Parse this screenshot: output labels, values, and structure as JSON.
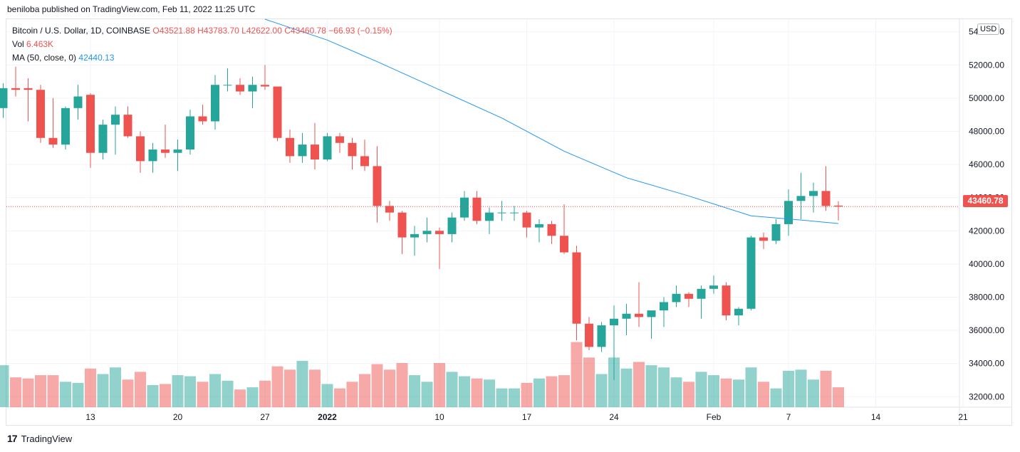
{
  "header": {
    "published": "beniloba published on TradingView.com, Feb 11, 2022 11:25 UTC"
  },
  "legend": {
    "symbol": "Bitcoin / U.S. Dollar, 1D, COINBASE",
    "ohlc": "O43521.88 H43783.70 L42622.00 C43460.78 −66.93 (−0.15%)",
    "vol_label": "Vol",
    "vol_value": "6.463K",
    "ma_label": "MA (50, close, 0)",
    "ma_value": "42440.13"
  },
  "currency_badge": "USD",
  "last_price_label": "43460.78",
  "footer": {
    "brand": "TradingView",
    "logo": "tradingview-logo-icon"
  },
  "colors": {
    "up": "#26a69a",
    "down": "#ef5350",
    "ma": "#2196f3"
  },
  "chart_data": {
    "type": "candlestick",
    "ylim": [
      31000,
      54500
    ],
    "last_price": 43460.78,
    "y_ticks": [
      "32000.00",
      "34000.00",
      "36000.00",
      "38000.00",
      "40000.00",
      "42000.00",
      "44000.00",
      "46000.00",
      "48000.00",
      "50000.00",
      "52000.00",
      "54000.00"
    ],
    "x_ticks": [
      {
        "label": "13",
        "date": "2021-12-13"
      },
      {
        "label": "20",
        "date": "2021-12-20"
      },
      {
        "label": "27",
        "date": "2021-12-27"
      },
      {
        "label": "2022",
        "date": "2022-01-01"
      },
      {
        "label": "10",
        "date": "2022-01-10"
      },
      {
        "label": "17",
        "date": "2022-01-17"
      },
      {
        "label": "24",
        "date": "2022-01-24"
      },
      {
        "label": "Feb",
        "date": "2022-02-01"
      },
      {
        "label": "7",
        "date": "2022-02-07"
      },
      {
        "label": "14",
        "date": "2022-02-14"
      },
      {
        "label": "21",
        "date": "2022-02-21"
      }
    ],
    "candles": [
      {
        "date": "2021-12-06",
        "o": 49400,
        "h": 50900,
        "l": 48800,
        "c": 50600,
        "v": 3.8
      },
      {
        "date": "2021-12-07",
        "o": 50600,
        "h": 51900,
        "l": 50100,
        "c": 50500,
        "v": 2.7
      },
      {
        "date": "2021-12-08",
        "o": 50600,
        "h": 51200,
        "l": 48600,
        "c": 50500,
        "v": 2.6
      },
      {
        "date": "2021-12-09",
        "o": 50500,
        "h": 50800,
        "l": 47300,
        "c": 47600,
        "v": 2.9
      },
      {
        "date": "2021-12-10",
        "o": 47600,
        "h": 50000,
        "l": 47000,
        "c": 47200,
        "v": 2.9
      },
      {
        "date": "2021-12-11",
        "o": 47200,
        "h": 49500,
        "l": 46900,
        "c": 49400,
        "v": 2.3
      },
      {
        "date": "2021-12-12",
        "o": 49400,
        "h": 50800,
        "l": 48700,
        "c": 50100,
        "v": 2.2
      },
      {
        "date": "2021-12-13",
        "o": 50200,
        "h": 50300,
        "l": 45800,
        "c": 46700,
        "v": 3.5
      },
      {
        "date": "2021-12-14",
        "o": 46700,
        "h": 48700,
        "l": 46300,
        "c": 48400,
        "v": 3.0
      },
      {
        "date": "2021-12-15",
        "o": 48400,
        "h": 49500,
        "l": 46600,
        "c": 49000,
        "v": 3.6
      },
      {
        "date": "2021-12-16",
        "o": 49000,
        "h": 49500,
        "l": 47600,
        "c": 47700,
        "v": 2.5
      },
      {
        "date": "2021-12-17",
        "o": 47700,
        "h": 48000,
        "l": 45500,
        "c": 46200,
        "v": 3.2
      },
      {
        "date": "2021-12-18",
        "o": 46200,
        "h": 47300,
        "l": 45500,
        "c": 46900,
        "v": 2.0
      },
      {
        "date": "2021-12-19",
        "o": 46900,
        "h": 48400,
        "l": 46400,
        "c": 46700,
        "v": 2.1
      },
      {
        "date": "2021-12-20",
        "o": 46700,
        "h": 47500,
        "l": 45600,
        "c": 46900,
        "v": 2.9
      },
      {
        "date": "2021-12-21",
        "o": 46900,
        "h": 49300,
        "l": 46600,
        "c": 48900,
        "v": 2.8
      },
      {
        "date": "2021-12-22",
        "o": 48900,
        "h": 49600,
        "l": 48400,
        "c": 48600,
        "v": 2.3
      },
      {
        "date": "2021-12-23",
        "o": 48600,
        "h": 51400,
        "l": 48100,
        "c": 50800,
        "v": 3.0
      },
      {
        "date": "2021-12-24",
        "o": 50800,
        "h": 51800,
        "l": 50400,
        "c": 50800,
        "v": 2.4
      },
      {
        "date": "2021-12-25",
        "o": 50800,
        "h": 51200,
        "l": 50200,
        "c": 50400,
        "v": 1.6
      },
      {
        "date": "2021-12-26",
        "o": 50400,
        "h": 51300,
        "l": 49400,
        "c": 50800,
        "v": 1.8
      },
      {
        "date": "2021-12-27",
        "o": 50800,
        "h": 52000,
        "l": 50500,
        "c": 50700,
        "v": 2.4
      },
      {
        "date": "2021-12-28",
        "o": 50700,
        "h": 50700,
        "l": 47400,
        "c": 47600,
        "v": 3.7
      },
      {
        "date": "2021-12-29",
        "o": 47600,
        "h": 48100,
        "l": 46100,
        "c": 46500,
        "v": 3.4
      },
      {
        "date": "2021-12-30",
        "o": 46500,
        "h": 47900,
        "l": 46100,
        "c": 47200,
        "v": 4.2
      },
      {
        "date": "2021-12-31",
        "o": 47200,
        "h": 48500,
        "l": 45700,
        "c": 46300,
        "v": 3.4
      },
      {
        "date": "2022-01-01",
        "o": 46300,
        "h": 47900,
        "l": 46200,
        "c": 47700,
        "v": 2.1
      },
      {
        "date": "2022-01-02",
        "o": 47700,
        "h": 47900,
        "l": 46700,
        "c": 47300,
        "v": 1.7
      },
      {
        "date": "2022-01-03",
        "o": 47300,
        "h": 47600,
        "l": 45700,
        "c": 46500,
        "v": 2.3
      },
      {
        "date": "2022-01-04",
        "o": 46500,
        "h": 47500,
        "l": 45600,
        "c": 45900,
        "v": 3.0
      },
      {
        "date": "2022-01-05",
        "o": 45900,
        "h": 47100,
        "l": 42500,
        "c": 43500,
        "v": 3.9
      },
      {
        "date": "2022-01-06",
        "o": 43500,
        "h": 43800,
        "l": 42600,
        "c": 43100,
        "v": 3.4
      },
      {
        "date": "2022-01-07",
        "o": 43100,
        "h": 43200,
        "l": 40600,
        "c": 41600,
        "v": 4.0
      },
      {
        "date": "2022-01-08",
        "o": 41600,
        "h": 42300,
        "l": 40500,
        "c": 41800,
        "v": 2.9
      },
      {
        "date": "2022-01-09",
        "o": 41800,
        "h": 42800,
        "l": 41300,
        "c": 42000,
        "v": 2.3
      },
      {
        "date": "2022-01-10",
        "o": 42000,
        "h": 42200,
        "l": 39700,
        "c": 41800,
        "v": 4.0
      },
      {
        "date": "2022-01-11",
        "o": 41800,
        "h": 43100,
        "l": 41300,
        "c": 42800,
        "v": 3.2
      },
      {
        "date": "2022-01-12",
        "o": 42800,
        "h": 44400,
        "l": 42600,
        "c": 44000,
        "v": 2.8
      },
      {
        "date": "2022-01-13",
        "o": 44000,
        "h": 44400,
        "l": 42400,
        "c": 42600,
        "v": 2.6
      },
      {
        "date": "2022-01-14",
        "o": 42600,
        "h": 43400,
        "l": 41800,
        "c": 43100,
        "v": 2.5
      },
      {
        "date": "2022-01-15",
        "o": 43100,
        "h": 43800,
        "l": 42600,
        "c": 43100,
        "v": 1.7
      },
      {
        "date": "2022-01-16",
        "o": 43100,
        "h": 43500,
        "l": 42600,
        "c": 43100,
        "v": 1.7
      },
      {
        "date": "2022-01-17",
        "o": 43100,
        "h": 43200,
        "l": 41600,
        "c": 42200,
        "v": 2.2
      },
      {
        "date": "2022-01-18",
        "o": 42200,
        "h": 42700,
        "l": 41300,
        "c": 42400,
        "v": 2.6
      },
      {
        "date": "2022-01-19",
        "o": 42400,
        "h": 42600,
        "l": 41200,
        "c": 41700,
        "v": 2.8
      },
      {
        "date": "2022-01-20",
        "o": 41700,
        "h": 43600,
        "l": 40600,
        "c": 40700,
        "v": 2.9
      },
      {
        "date": "2022-01-21",
        "o": 40700,
        "h": 41100,
        "l": 35400,
        "c": 36400,
        "v": 5.9
      },
      {
        "date": "2022-01-22",
        "o": 36400,
        "h": 36800,
        "l": 34800,
        "c": 35000,
        "v": 4.5
      },
      {
        "date": "2022-01-23",
        "o": 35000,
        "h": 36500,
        "l": 34700,
        "c": 36300,
        "v": 3.0
      },
      {
        "date": "2022-01-24",
        "o": 36300,
        "h": 37500,
        "l": 33000,
        "c": 36700,
        "v": 4.5
      },
      {
        "date": "2022-01-25",
        "o": 36700,
        "h": 37600,
        "l": 35700,
        "c": 37000,
        "v": 3.5
      },
      {
        "date": "2022-01-26",
        "o": 37000,
        "h": 38900,
        "l": 36200,
        "c": 36800,
        "v": 4.1
      },
      {
        "date": "2022-01-27",
        "o": 36800,
        "h": 37200,
        "l": 35500,
        "c": 37200,
        "v": 3.8
      },
      {
        "date": "2022-01-28",
        "o": 37200,
        "h": 38000,
        "l": 36200,
        "c": 37700,
        "v": 3.6
      },
      {
        "date": "2022-01-29",
        "o": 37700,
        "h": 38700,
        "l": 37400,
        "c": 38200,
        "v": 2.7
      },
      {
        "date": "2022-01-30",
        "o": 38200,
        "h": 38300,
        "l": 37400,
        "c": 37900,
        "v": 2.3
      },
      {
        "date": "2022-01-31",
        "o": 37900,
        "h": 38700,
        "l": 36700,
        "c": 38500,
        "v": 3.2
      },
      {
        "date": "2022-02-01",
        "o": 38500,
        "h": 39300,
        "l": 38200,
        "c": 38700,
        "v": 2.9
      },
      {
        "date": "2022-02-02",
        "o": 38700,
        "h": 38900,
        "l": 36600,
        "c": 36900,
        "v": 2.6
      },
      {
        "date": "2022-02-03",
        "o": 36900,
        "h": 37400,
        "l": 36300,
        "c": 37300,
        "v": 2.5
      },
      {
        "date": "2022-02-04",
        "o": 37300,
        "h": 41700,
        "l": 37200,
        "c": 41600,
        "v": 3.6
      },
      {
        "date": "2022-02-05",
        "o": 41600,
        "h": 41900,
        "l": 40900,
        "c": 41400,
        "v": 2.3
      },
      {
        "date": "2022-02-06",
        "o": 41400,
        "h": 42700,
        "l": 41200,
        "c": 42400,
        "v": 1.7
      },
      {
        "date": "2022-02-07",
        "o": 42400,
        "h": 44500,
        "l": 41700,
        "c": 43800,
        "v": 3.3
      },
      {
        "date": "2022-02-08",
        "o": 43800,
        "h": 45500,
        "l": 42700,
        "c": 44100,
        "v": 3.4
      },
      {
        "date": "2022-02-09",
        "o": 44100,
        "h": 44900,
        "l": 43100,
        "c": 44400,
        "v": 2.5
      },
      {
        "date": "2022-02-10",
        "o": 44400,
        "h": 45900,
        "l": 43200,
        "c": 43500,
        "v": 3.3
      },
      {
        "date": "2022-02-11",
        "o": 43520,
        "h": 43780,
        "l": 42620,
        "c": 43460,
        "v": 1.8
      }
    ],
    "ma": [
      {
        "date": "2021-12-27",
        "v": 54800
      },
      {
        "date": "2022-01-01",
        "v": 53500
      },
      {
        "date": "2022-01-05",
        "v": 52200
      },
      {
        "date": "2022-01-10",
        "v": 50500
      },
      {
        "date": "2022-01-15",
        "v": 48800
      },
      {
        "date": "2022-01-20",
        "v": 46800
      },
      {
        "date": "2022-01-25",
        "v": 45200
      },
      {
        "date": "2022-01-30",
        "v": 44100
      },
      {
        "date": "2022-02-04",
        "v": 42900
      },
      {
        "date": "2022-02-08",
        "v": 42650
      },
      {
        "date": "2022-02-11",
        "v": 42440
      }
    ]
  }
}
